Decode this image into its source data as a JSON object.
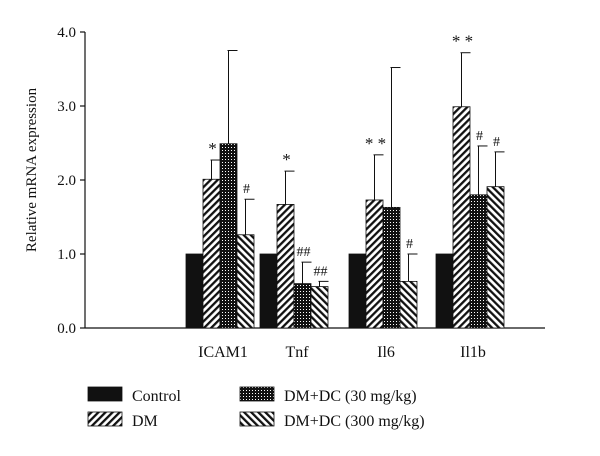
{
  "chart_data": {
    "type": "bar",
    "title": "",
    "xlabel": "",
    "ylabel": "Relative mRNA expression",
    "ylim": [
      0,
      4.0
    ],
    "yticks": [
      "0.0",
      "1.0",
      "2.0",
      "3.0",
      "4.0"
    ],
    "categories": [
      "ICAM1",
      "Tnf",
      "Il6",
      "Il1b"
    ],
    "series": [
      {
        "name": "Control",
        "pattern": "solid",
        "values": [
          1.0,
          1.0,
          1.0,
          1.0
        ],
        "errors": [
          0,
          0,
          0,
          0
        ],
        "annotations": [
          "",
          "",
          "",
          ""
        ]
      },
      {
        "name": "DM",
        "pattern": "diagonal",
        "values": [
          2.01,
          1.67,
          1.73,
          2.99
        ],
        "errors": [
          0.26,
          0.45,
          0.61,
          0.73
        ],
        "annotations": [
          "*",
          "*",
          "* *",
          "* *"
        ]
      },
      {
        "name": "DM+DC (30 mg/kg)",
        "pattern": "dotted",
        "values": [
          2.49,
          0.6,
          1.63,
          1.8
        ],
        "errors": [
          1.26,
          0.29,
          1.89,
          0.66
        ],
        "annotations": [
          "",
          "##",
          "",
          "#"
        ]
      },
      {
        "name": "DM+DC (300 mg/kg)",
        "pattern": "reverse-diagonal",
        "values": [
          1.26,
          0.56,
          0.63,
          1.91
        ],
        "errors": [
          0.48,
          0.07,
          0.37,
          0.47
        ],
        "annotations": [
          "#",
          "##",
          "#",
          "#"
        ]
      }
    ],
    "legend_placement": "bottom",
    "grid": false,
    "colors": {
      "bar_fill": "#111111",
      "background": "#ffffff"
    }
  }
}
